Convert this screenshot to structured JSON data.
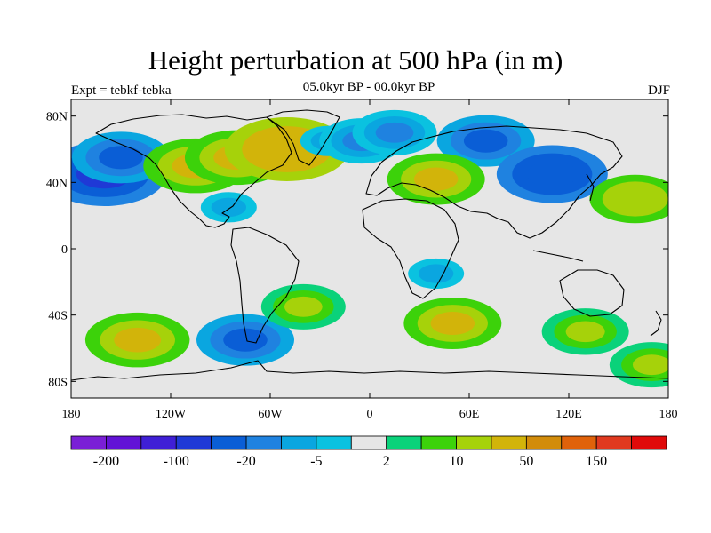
{
  "title": "Height perturbation at 500 hPa (in m)",
  "subtitle": "05.0kyr BP - 00.0kyr BP",
  "left_label": "Expt = tebkf-tebka",
  "right_label": "DJF",
  "map": {
    "lon_range": [
      -180,
      180
    ],
    "lat_range": [
      -90,
      90
    ],
    "background": "#e6e6e6",
    "lat_ticks": [
      {
        "lat": 80,
        "label": "80N"
      },
      {
        "lat": 40,
        "label": "40N"
      },
      {
        "lat": 0,
        "label": "0"
      },
      {
        "lat": -40,
        "label": "40S"
      },
      {
        "lat": -80,
        "label": "80S"
      }
    ],
    "lon_ticks": [
      {
        "lon": -180,
        "label": "180"
      },
      {
        "lon": -120,
        "label": "120W"
      },
      {
        "lon": -60,
        "label": "60W"
      },
      {
        "lon": 0,
        "label": "0"
      },
      {
        "lon": 60,
        "label": "60E"
      },
      {
        "lon": 120,
        "label": "120E"
      },
      {
        "lon": 180,
        "label": "180"
      }
    ]
  },
  "colorbar": {
    "colors": [
      "#7a1fd6",
      "#6212d6",
      "#3f1fd6",
      "#1f39d6",
      "#0a5ed6",
      "#1f82e0",
      "#0aa6e0",
      "#0ac2e0",
      "#e6e6e6",
      "#0ad27a",
      "#3cd20a",
      "#a6d20a",
      "#d2b40a",
      "#d28c0a",
      "#e0620a",
      "#e0391f",
      "#e00a0a"
    ],
    "labels": [
      {
        "after_box": 1,
        "text": "-200"
      },
      {
        "after_box": 3,
        "text": "-100"
      },
      {
        "after_box": 5,
        "text": "-20"
      },
      {
        "after_box": 7,
        "text": "-5"
      },
      {
        "after_box": 9,
        "text": "2"
      },
      {
        "after_box": 11,
        "text": "10"
      },
      {
        "after_box": 13,
        "text": "50"
      },
      {
        "after_box": 15,
        "text": "150"
      }
    ]
  },
  "field": [
    {
      "lon": -160,
      "lat": 45,
      "value": -50
    },
    {
      "lon": -150,
      "lat": 55,
      "value": -20
    },
    {
      "lon": -105,
      "lat": 50,
      "value": 25
    },
    {
      "lon": -80,
      "lat": 55,
      "value": 25
    },
    {
      "lon": -50,
      "lat": 60,
      "value": 40
    },
    {
      "lon": -25,
      "lat": 65,
      "value": -5
    },
    {
      "lon": -5,
      "lat": 65,
      "value": -10
    },
    {
      "lon": 15,
      "lat": 70,
      "value": -10
    },
    {
      "lon": 70,
      "lat": 65,
      "value": -20
    },
    {
      "lon": 40,
      "lat": 42,
      "value": 20
    },
    {
      "lon": 110,
      "lat": 45,
      "value": -30
    },
    {
      "lon": 160,
      "lat": 30,
      "value": 15
    },
    {
      "lon": -85,
      "lat": 25,
      "value": -5
    },
    {
      "lon": -140,
      "lat": -55,
      "value": 25
    },
    {
      "lon": -75,
      "lat": -55,
      "value": -20
    },
    {
      "lon": -40,
      "lat": -35,
      "value": 10
    },
    {
      "lon": 50,
      "lat": -45,
      "value": 20
    },
    {
      "lon": 130,
      "lat": -50,
      "value": 12
    },
    {
      "lon": 40,
      "lat": -15,
      "value": -5
    },
    {
      "lon": 170,
      "lat": -70,
      "value": 10
    }
  ]
}
